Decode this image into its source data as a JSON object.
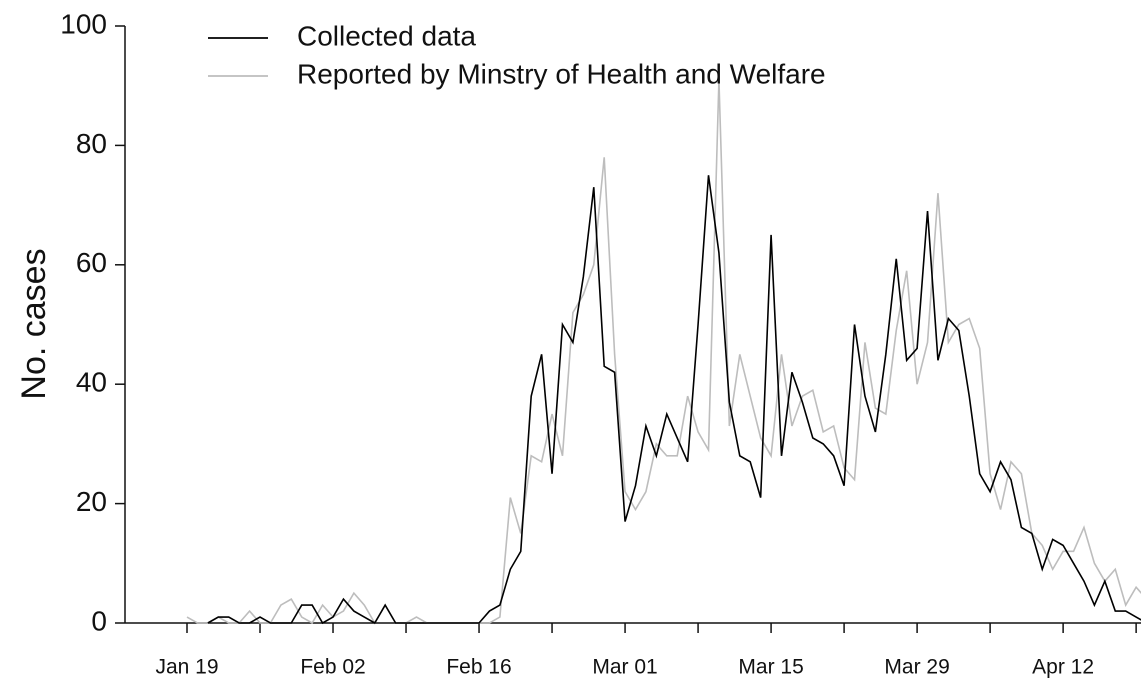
{
  "chart_data": {
    "type": "line",
    "y_label": "No. cases",
    "categories": [
      "Jan 19",
      "Jan 20",
      "Jan 21",
      "Jan 22",
      "Jan 23",
      "Jan 24",
      "Jan 25",
      "Jan 26",
      "Jan 27",
      "Jan 28",
      "Jan 29",
      "Jan 30",
      "Jan 31",
      "Feb 01",
      "Feb 02",
      "Feb 03",
      "Feb 04",
      "Feb 05",
      "Feb 06",
      "Feb 07",
      "Feb 08",
      "Feb 09",
      "Feb 10",
      "Feb 11",
      "Feb 12",
      "Feb 13",
      "Feb 14",
      "Feb 15",
      "Feb 16",
      "Feb 17",
      "Feb 18",
      "Feb 19",
      "Feb 20",
      "Feb 21",
      "Feb 22",
      "Feb 23",
      "Feb 24",
      "Feb 25",
      "Feb 26",
      "Feb 27",
      "Feb 28",
      "Feb 29",
      "Mar 01",
      "Mar 02",
      "Mar 03",
      "Mar 04",
      "Mar 05",
      "Mar 06",
      "Mar 07",
      "Mar 08",
      "Mar 09",
      "Mar 10",
      "Mar 11",
      "Mar 12",
      "Mar 13",
      "Mar 14",
      "Mar 15",
      "Mar 16",
      "Mar 17",
      "Mar 18",
      "Mar 19",
      "Mar 20",
      "Mar 21",
      "Mar 22",
      "Mar 23",
      "Mar 24",
      "Mar 25",
      "Mar 26",
      "Mar 27",
      "Mar 28",
      "Mar 29",
      "Mar 30",
      "Mar 31",
      "Apr 01",
      "Apr 02",
      "Apr 03",
      "Apr 04",
      "Apr 05",
      "Apr 06",
      "Apr 07",
      "Apr 08",
      "Apr 09",
      "Apr 10",
      "Apr 11",
      "Apr 12",
      "Apr 13",
      "Apr 14",
      "Apr 15",
      "Apr 16",
      "Apr 17",
      "Apr 18",
      "Apr 19",
      "Apr 20"
    ],
    "series": [
      {
        "name": "Collected data",
        "color": "#000000",
        "values": [
          null,
          null,
          0,
          1,
          1,
          0,
          0,
          1,
          0,
          0,
          0,
          3,
          3,
          0,
          1,
          4,
          2,
          1,
          0,
          3,
          0,
          0,
          0,
          0,
          0,
          0,
          0,
          0,
          0,
          2,
          3,
          9,
          12,
          38,
          45,
          25,
          50,
          47,
          58,
          73,
          43,
          42,
          17,
          23,
          33,
          28,
          35,
          31,
          27,
          50,
          75,
          62,
          37,
          28,
          27,
          21,
          65,
          28,
          42,
          37,
          31,
          30,
          28,
          23,
          50,
          38,
          32,
          45,
          61,
          44,
          46,
          69,
          44,
          51,
          49,
          38,
          25,
          22,
          27,
          24,
          16,
          15,
          9,
          14,
          13,
          10,
          7,
          3,
          7,
          2,
          2,
          1,
          0
        ]
      },
      {
        "name": "Reported by Minstry of Health and Welfare",
        "color": "#bdbdbd",
        "values": [
          1,
          0,
          0,
          1,
          0,
          0,
          2,
          0,
          0,
          3,
          4,
          1,
          0,
          3,
          1,
          2,
          5,
          3,
          0,
          3,
          0,
          0,
          1,
          0,
          0,
          0,
          0,
          0,
          0,
          0,
          1,
          21,
          15,
          28,
          27,
          35,
          28,
          52,
          55,
          60,
          78,
          45,
          22,
          19,
          22,
          30,
          28,
          28,
          38,
          32,
          29,
          91,
          33,
          45,
          38,
          31,
          28,
          45,
          33,
          38,
          39,
          32,
          33,
          26,
          24,
          47,
          36,
          35,
          49,
          59,
          40,
          47,
          72,
          47,
          50,
          51,
          46,
          25,
          19,
          27,
          25,
          15,
          13,
          9,
          12,
          12,
          16,
          10,
          7,
          9,
          3,
          6,
          4
        ]
      }
    ],
    "ylim": [
      0,
      100
    ],
    "yticks": [
      0,
      20,
      40,
      60,
      80,
      100
    ]
  }
}
